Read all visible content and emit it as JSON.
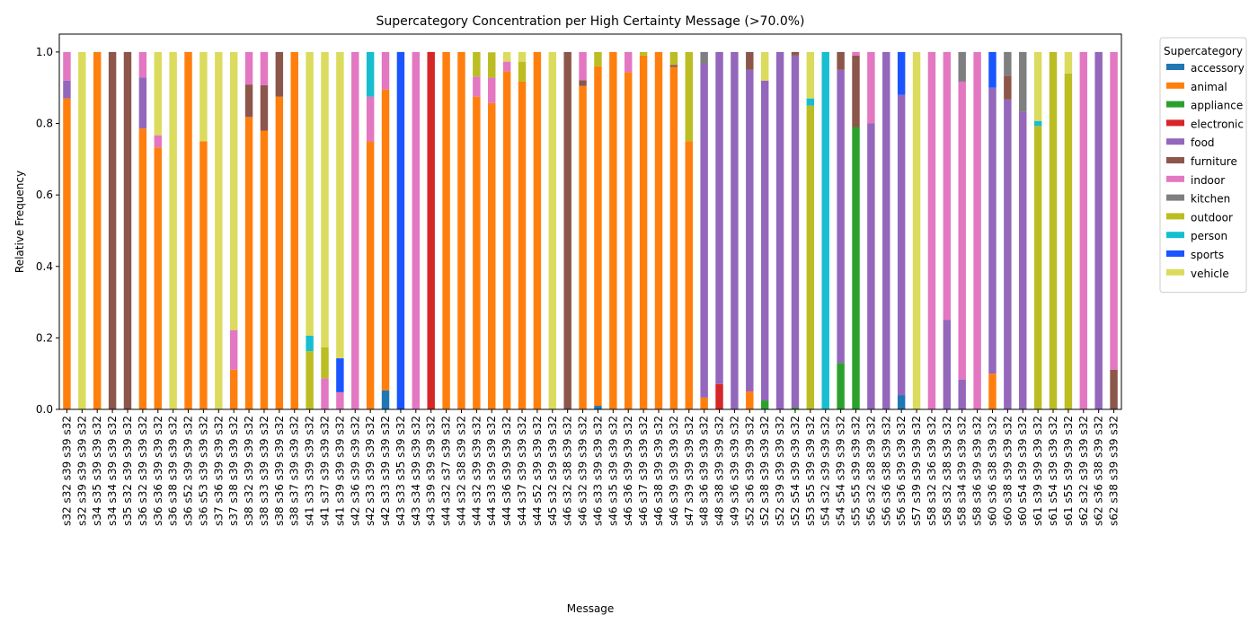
{
  "chart_data": {
    "type": "stacked_bar",
    "title": "Supercategory Concentration per High Certainty Message (>70.0%)",
    "x_label": "Message",
    "y_label": "Relative Frequency",
    "legend_title": "Supercategory",
    "legend_position": "outside-right",
    "categories": [
      "s32 s32 s39 s39 s32",
      "s32 s39 s39 s39 s32",
      "s34 s35 s39 s39 s32",
      "s34 s34 s39 s39 s32",
      "s35 s32 s39 s39 s32",
      "s36 s32 s39 s39 s32",
      "s36 s36 s39 s39 s32",
      "s36 s38 s39 s39 s32",
      "s36 s52 s39 s39 s32",
      "s36 s53 s39 s39 s32",
      "s37 s36 s39 s39 s32",
      "s37 s38 s39 s39 s32",
      "s38 s32 s39 s39 s32",
      "s38 s33 s39 s39 s32",
      "s38 s36 s39 s39 s32",
      "s38 s37 s39 s39 s32",
      "s41 s33 s39 s39 s32",
      "s41 s37 s39 s39 s32",
      "s41 s39 s39 s39 s32",
      "s42 s36 s39 s39 s32",
      "s42 s33 s39 s39 s32",
      "s42 s33 s39 s39 s32",
      "s43 s33 s35 s39 s32",
      "s43 s34 s39 s39 s32",
      "s43 s39 s39 s39 s32",
      "s44 s32 s37 s39 s32",
      "s44 s32 s38 s39 s32",
      "s44 s32 s39 s39 s32",
      "s44 s33 s39 s39 s32",
      "s44 s36 s39 s39 s32",
      "s44 s37 s39 s39 s32",
      "s44 s52 s39 s39 s32",
      "s45 s32 s39 s39 s32",
      "s46 s32 s38 s39 s32",
      "s46 s32 s39 s39 s32",
      "s46 s33 s39 s39 s32",
      "s46 s35 s39 s39 s32",
      "s46 s36 s39 s39 s32",
      "s46 s37 s39 s39 s32",
      "s46 s38 s39 s39 s32",
      "s46 s39 s39 s39 s32",
      "s47 s39 s39 s39 s32",
      "s48 s36 s39 s39 s32",
      "s48 s38 s39 s39 s32",
      "s49 s36 s39 s39 s32",
      "s52 s36 s39 s39 s32",
      "s52 s38 s39 s39 s32",
      "s52 s39 s39 s39 s32",
      "s52 s54 s39 s39 s32",
      "s53 s55 s39 s39 s32",
      "s54 s32 s39 s39 s32",
      "s54 s54 s39 s39 s32",
      "s55 s55 s39 s39 s32",
      "s56 s32 s38 s39 s32",
      "s56 s36 s38 s39 s32",
      "s56 s36 s39 s39 s32",
      "s57 s39 s39 s39 s32",
      "s58 s32 s36 s39 s32",
      "s58 s32 s38 s39 s32",
      "s58 s34 s39 s39 s32",
      "s58 s36 s39 s39 s32",
      "s60 s36 s38 s39 s32",
      "s60 s38 s39 s39 s32",
      "s60 s54 s39 s39 s32",
      "s61 s39 s39 s39 s32",
      "s61 s54 s39 s39 s32",
      "s61 s55 s39 s39 s32",
      "s62 s32 s39 s39 s32",
      "s62 s36 s38 s39 s32",
      "s62 s38 s39 s39 s32"
    ],
    "series": [
      {
        "name": "accessory",
        "color": "#1f77b4",
        "values": [
          0,
          0,
          0,
          0,
          0,
          0,
          0,
          0,
          0,
          0,
          0,
          0,
          0,
          0,
          0,
          0,
          0,
          0,
          0,
          0,
          0,
          0.053,
          0,
          0,
          0,
          0,
          0,
          0,
          0,
          0,
          0,
          0,
          0,
          0,
          0,
          0.01,
          0,
          0,
          0,
          0,
          0,
          0,
          0,
          0,
          0,
          0,
          0,
          0,
          0,
          0,
          0,
          0,
          0,
          0,
          0,
          0.04,
          0,
          0,
          0,
          0,
          0,
          0,
          0,
          0,
          0,
          0,
          0,
          0,
          0,
          0
        ]
      },
      {
        "name": "animal",
        "color": "#ff7f0e",
        "values": [
          0.87,
          0,
          1,
          0,
          0,
          0.786,
          0.733,
          0,
          1,
          0.75,
          0,
          0.111,
          0.818,
          0.78,
          0.875,
          1,
          0,
          0,
          0,
          0,
          0.75,
          0.842,
          0,
          0,
          0,
          1,
          1,
          0.875,
          0.857,
          0.946,
          0.917,
          1,
          0,
          0,
          0.905,
          0.95,
          1,
          0.943,
          0.99,
          1,
          0.958,
          0.75,
          0.033,
          0,
          0,
          0.05,
          0,
          0,
          0,
          0,
          0,
          0,
          0,
          0,
          0,
          0,
          0,
          0,
          0,
          0,
          0,
          0.1,
          0,
          0,
          0,
          0,
          0,
          0,
          0,
          0
        ]
      },
      {
        "name": "appliance",
        "color": "#2ca02c",
        "values": [
          0,
          0,
          0,
          0,
          0,
          0,
          0,
          0,
          0,
          0,
          0,
          0,
          0,
          0,
          0,
          0,
          0,
          0,
          0,
          0,
          0,
          0,
          0,
          0,
          0,
          0,
          0,
          0,
          0,
          0,
          0,
          0,
          0,
          0,
          0,
          0,
          0,
          0,
          0,
          0,
          0,
          0,
          0,
          0,
          0,
          0,
          0.025,
          0,
          0.005,
          0,
          0,
          0.13,
          0.79,
          0,
          0,
          0,
          0,
          0,
          0,
          0,
          0,
          0,
          0,
          0,
          0,
          0,
          0,
          0,
          0,
          0
        ]
      },
      {
        "name": "electronic",
        "color": "#d62728",
        "values": [
          0,
          0,
          0,
          0,
          0,
          0,
          0,
          0,
          0,
          0,
          0,
          0,
          0,
          0,
          0,
          0,
          0,
          0,
          0,
          0,
          0,
          0,
          0,
          0,
          1,
          0,
          0,
          0,
          0,
          0,
          0,
          0,
          0,
          0,
          0,
          0,
          0,
          0,
          0,
          0,
          0,
          0,
          0,
          0.071,
          0,
          0,
          0,
          0,
          0,
          0,
          0,
          0,
          0,
          0,
          0,
          0,
          0,
          0,
          0,
          0,
          0,
          0,
          0,
          0,
          0,
          0,
          0,
          0,
          0,
          0
        ]
      },
      {
        "name": "food",
        "color": "#9467bd",
        "values": [
          0.05,
          0,
          0,
          0,
          0,
          0.143,
          0,
          0,
          0,
          0,
          0,
          0,
          0,
          0,
          0,
          0,
          0,
          0,
          0,
          0,
          0,
          0,
          0,
          0,
          0,
          0,
          0,
          0,
          0,
          0,
          0,
          0,
          0,
          0,
          0,
          0,
          0,
          0,
          0,
          0,
          0,
          0,
          0.934,
          0.929,
          1,
          0.9,
          0.895,
          1,
          0.985,
          0,
          0,
          0.82,
          0,
          0.8,
          1,
          0.84,
          0,
          0,
          0.25,
          0.083,
          0,
          0.8,
          0.867,
          0.833,
          0,
          0,
          0,
          0,
          1,
          0
        ]
      },
      {
        "name": "furniture",
        "color": "#8c564b",
        "values": [
          0,
          0,
          0,
          1,
          1,
          0,
          0,
          0,
          0,
          0,
          0,
          0,
          0.091,
          0.127,
          0.125,
          0,
          0,
          0,
          0,
          0,
          0,
          0,
          0,
          0,
          0,
          0,
          0,
          0,
          0,
          0,
          0,
          0,
          0,
          1,
          0.016,
          0,
          0,
          0,
          0,
          0,
          0.006,
          0,
          0,
          0,
          0,
          0.05,
          0,
          0,
          0.01,
          0,
          0,
          0.05,
          0.2,
          0,
          0,
          0,
          0,
          0,
          0,
          0,
          0,
          0,
          0.066,
          0,
          0,
          0,
          0,
          0,
          0,
          0.111
        ]
      },
      {
        "name": "indoor",
        "color": "#e377c2",
        "values": [
          0.08,
          0,
          0,
          0,
          0,
          0.071,
          0.034,
          0,
          0,
          0,
          0,
          0.111,
          0.091,
          0.093,
          0,
          0,
          0,
          0.087,
          0.048,
          1,
          0.125,
          0.105,
          0,
          1,
          0,
          0,
          0,
          0.056,
          0.071,
          0.027,
          0,
          0,
          0,
          0,
          0.079,
          0,
          0,
          0.057,
          0,
          0,
          0,
          0,
          0,
          0,
          0,
          0,
          0,
          0,
          0,
          0,
          0,
          0,
          0.01,
          0.2,
          0,
          0,
          0,
          1,
          0.75,
          0.834,
          1,
          0,
          0,
          0,
          0,
          0,
          0,
          1,
          0,
          0.889
        ]
      },
      {
        "name": "kitchen",
        "color": "#7f7f7f",
        "values": [
          0,
          0,
          0,
          0,
          0,
          0,
          0,
          0,
          0,
          0,
          0,
          0,
          0,
          0,
          0,
          0,
          0,
          0,
          0,
          0,
          0,
          0,
          0,
          0,
          0,
          0,
          0,
          0,
          0,
          0,
          0,
          0,
          0,
          0,
          0,
          0,
          0,
          0,
          0,
          0,
          0,
          0,
          0.033,
          0,
          0,
          0,
          0,
          0,
          0,
          0,
          0,
          0,
          0,
          0,
          0,
          0,
          0,
          0,
          0,
          0.083,
          0,
          0,
          0.067,
          0.167,
          0,
          0,
          0,
          0,
          0,
          0
        ]
      },
      {
        "name": "outdoor",
        "color": "#bcbd22",
        "values": [
          0,
          0,
          0,
          0,
          0,
          0,
          0,
          0,
          0,
          0,
          0,
          0,
          0,
          0,
          0,
          0,
          0.163,
          0.087,
          0,
          0,
          0,
          0,
          0,
          0,
          0,
          0,
          0,
          0.069,
          0.071,
          0,
          0.056,
          0,
          0,
          0,
          0,
          0.04,
          0,
          0,
          0.01,
          0,
          0.036,
          0.25,
          0,
          0,
          0,
          0,
          0,
          0,
          0,
          0.85,
          0,
          0,
          0,
          0,
          0,
          0,
          0,
          0,
          0,
          0,
          0,
          0,
          0,
          0,
          0.793,
          1,
          0.94,
          0,
          0,
          0
        ]
      },
      {
        "name": "person",
        "color": "#17becf",
        "values": [
          0,
          0,
          0,
          0,
          0,
          0,
          0,
          0,
          0,
          0,
          0,
          0,
          0,
          0,
          0,
          0,
          0.043,
          0,
          0,
          0,
          0.125,
          0,
          0,
          0,
          0,
          0,
          0,
          0,
          0,
          0,
          0,
          0,
          0,
          0,
          0,
          0,
          0,
          0,
          0,
          0,
          0,
          0,
          0,
          0,
          0,
          0,
          0,
          0,
          0,
          0.02,
          1,
          0,
          0,
          0,
          0,
          0,
          0,
          0,
          0,
          0,
          0,
          0,
          0,
          0,
          0.014,
          0,
          0,
          0,
          0,
          0
        ]
      },
      {
        "name": "sports",
        "color": "#1a55ff",
        "values": [
          0,
          0,
          0,
          0,
          0,
          0,
          0,
          0,
          0,
          0,
          0,
          0,
          0,
          0,
          0,
          0,
          0,
          0,
          0.095,
          0,
          0,
          0,
          1,
          0,
          0,
          0,
          0,
          0,
          0,
          0,
          0,
          0,
          0,
          0,
          0,
          0,
          0,
          0,
          0,
          0,
          0,
          0,
          0,
          0,
          0,
          0,
          0,
          0,
          0,
          0,
          0,
          0,
          0,
          0,
          0,
          0.12,
          0,
          0,
          0,
          0,
          0,
          0.1,
          0,
          0,
          0,
          0,
          0,
          0,
          0,
          0
        ]
      },
      {
        "name": "vehicle",
        "color": "#dbdb5e",
        "values": [
          0,
          1,
          0,
          0,
          0,
          0,
          0.233,
          1,
          0,
          0.25,
          1,
          0.778,
          0,
          0,
          0,
          0,
          0.794,
          0.826,
          0.857,
          0,
          0,
          0,
          0,
          0,
          0,
          0,
          0,
          0,
          0,
          0.027,
          0.027,
          0,
          1,
          0,
          0,
          0,
          0,
          0,
          0,
          0,
          0,
          0,
          0,
          0,
          0,
          0,
          0.08,
          0,
          0,
          0.13,
          0,
          0,
          0,
          0,
          0,
          0,
          1,
          0,
          0,
          0,
          0,
          0,
          0,
          0,
          0.193,
          0,
          0.06,
          0,
          0,
          0
        ]
      }
    ],
    "ylim": [
      0,
      1.05
    ],
    "yticks": [
      {
        "value": 0,
        "label": "0.0"
      },
      {
        "value": 0.2,
        "label": "0.2"
      },
      {
        "value": 0.4,
        "label": "0.4"
      },
      {
        "value": 0.6,
        "label": "0.6"
      },
      {
        "value": 0.8,
        "label": "0.8"
      },
      {
        "value": 1,
        "label": "1.0"
      }
    ],
    "grid": false
  }
}
